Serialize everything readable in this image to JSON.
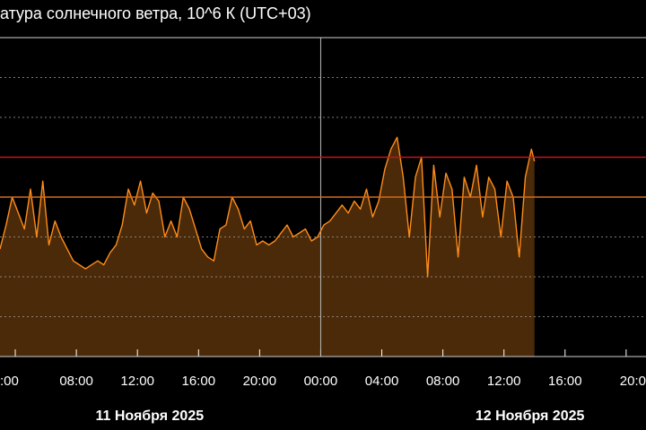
{
  "chart_data": {
    "type": "area",
    "title": "атура солнечного ветра, 10^6 К (UTC+03)",
    "colors": {
      "background": "#000000",
      "series_line": "#ff8c1a",
      "series_fill": "#4a2a08",
      "threshold_upper": "#c01818",
      "threshold_lower": "#d46a1a",
      "grid": "#9a9a9a",
      "text": "#ffffff"
    },
    "x_axis": {
      "unit": "hours since 11 Nov 2025 00:00 UTC+03",
      "range": [
        3.0,
        45.3
      ],
      "tick_hours": [
        4,
        8,
        12,
        16,
        20,
        24,
        28,
        32,
        36,
        40,
        44
      ],
      "tick_labels": [
        ":00",
        "08:00",
        "12:00",
        "16:00",
        "20:00",
        "00:00",
        "04:00",
        "08:00",
        "12:00",
        "16:00",
        "20:0"
      ],
      "day_labels": [
        "11 Ноября 2025",
        "12 Ноября 2025"
      ],
      "day_label_hours": [
        12.8,
        37.7
      ],
      "day_divider_hour": 24
    },
    "y_axis": {
      "range": [
        0,
        0.8
      ],
      "grid_values": [
        0.1,
        0.2,
        0.3,
        0.4,
        0.5,
        0.6,
        0.7
      ]
    },
    "thresholds": [
      {
        "value": 0.5,
        "color": "#c01818"
      },
      {
        "value": 0.4,
        "color": "#d46a1a"
      }
    ],
    "data_end_hour": 38.0,
    "series": [
      {
        "x": [
          3.0,
          3.4,
          3.8,
          4.2,
          4.6,
          5.0,
          5.4,
          5.8,
          6.2,
          6.6,
          7.0,
          7.4,
          7.8,
          8.2,
          8.6,
          9.0,
          9.4,
          9.8,
          10.2,
          10.6,
          11.0,
          11.4,
          11.8,
          12.2,
          12.6,
          13.0,
          13.4,
          13.8,
          14.2,
          14.6,
          15.0,
          15.4,
          15.8,
          16.2,
          16.6,
          17.0,
          17.4,
          17.8,
          18.2,
          18.6,
          19.0,
          19.4,
          19.8,
          20.2,
          20.6,
          21.0,
          21.4,
          21.8,
          22.2,
          22.6,
          23.0,
          23.4,
          23.8,
          24.2,
          24.6,
          25.0,
          25.4,
          25.8,
          26.2,
          26.6,
          27.0,
          27.4,
          27.8,
          28.2,
          28.6,
          29.0,
          29.4,
          29.8,
          30.2,
          30.6,
          31.0,
          31.4,
          31.8,
          32.2,
          32.6,
          33.0,
          33.4,
          33.8,
          34.2,
          34.6,
          35.0,
          35.4,
          35.8,
          36.2,
          36.6,
          37.0,
          37.4,
          37.8,
          38.0
        ],
        "y": [
          0.27,
          0.33,
          0.4,
          0.36,
          0.32,
          0.42,
          0.3,
          0.44,
          0.28,
          0.34,
          0.3,
          0.27,
          0.24,
          0.23,
          0.22,
          0.23,
          0.24,
          0.23,
          0.26,
          0.28,
          0.33,
          0.42,
          0.38,
          0.44,
          0.36,
          0.41,
          0.39,
          0.3,
          0.34,
          0.3,
          0.4,
          0.37,
          0.32,
          0.27,
          0.25,
          0.24,
          0.32,
          0.33,
          0.4,
          0.37,
          0.32,
          0.34,
          0.28,
          0.29,
          0.28,
          0.29,
          0.31,
          0.33,
          0.3,
          0.31,
          0.32,
          0.29,
          0.3,
          0.33,
          0.34,
          0.36,
          0.38,
          0.36,
          0.39,
          0.37,
          0.42,
          0.35,
          0.39,
          0.47,
          0.52,
          0.55,
          0.45,
          0.3,
          0.45,
          0.5,
          0.2,
          0.48,
          0.35,
          0.46,
          0.42,
          0.25,
          0.45,
          0.4,
          0.48,
          0.35,
          0.45,
          0.42,
          0.3,
          0.44,
          0.4,
          0.25,
          0.45,
          0.52,
          0.49
        ]
      }
    ]
  }
}
